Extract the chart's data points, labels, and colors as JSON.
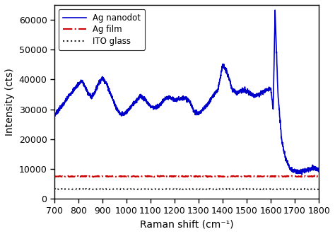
{
  "title": "",
  "xlabel": "Raman shift (cm⁻¹)",
  "ylabel": "Intensity (cts)",
  "xlim": [
    700,
    1800
  ],
  "ylim": [
    0,
    65000
  ],
  "yticks": [
    0,
    10000,
    20000,
    30000,
    40000,
    50000,
    60000
  ],
  "ytick_labels": [
    "0",
    "10000",
    "20000",
    "30000",
    "40000",
    "50000",
    "60000"
  ],
  "xticks": [
    700,
    800,
    900,
    1000,
    1100,
    1200,
    1300,
    1400,
    1500,
    1600,
    1700,
    1800
  ],
  "legend": [
    {
      "label": "Ag nanodot",
      "color": "#0000cc",
      "linestyle": "-",
      "lw": 1.2
    },
    {
      "label": "Ag film",
      "color": "#cc0000",
      "linestyle": "-.",
      "lw": 1.5
    },
    {
      "label": "ITO glass",
      "color": "#222222",
      "linestyle": ":",
      "lw": 1.5
    }
  ],
  "ag_nanodot_x": [
    700,
    715,
    730,
    745,
    760,
    775,
    790,
    800,
    815,
    825,
    840,
    855,
    870,
    885,
    900,
    915,
    930,
    945,
    960,
    975,
    990,
    1005,
    1020,
    1040,
    1060,
    1080,
    1100,
    1120,
    1140,
    1160,
    1180,
    1200,
    1220,
    1240,
    1260,
    1280,
    1300,
    1320,
    1340,
    1360,
    1380,
    1400,
    1420,
    1440,
    1460,
    1480,
    1500,
    1520,
    1540,
    1560,
    1580,
    1600,
    1610,
    1618,
    1630,
    1645,
    1660,
    1680,
    1700,
    1720,
    1750,
    1780,
    1800
  ],
  "ag_nanodot_y": [
    28000,
    29500,
    31000,
    32500,
    34500,
    36000,
    37500,
    38500,
    39500,
    38000,
    35500,
    34000,
    36000,
    39000,
    40500,
    39000,
    36000,
    33000,
    30000,
    28500,
    28200,
    29500,
    31000,
    33000,
    34500,
    33000,
    31000,
    30500,
    31500,
    33500,
    34000,
    33000,
    33500,
    34000,
    33000,
    29500,
    28500,
    30000,
    32000,
    34500,
    36500,
    45000,
    42000,
    36500,
    35500,
    36500,
    36000,
    35000,
    34500,
    35500,
    36500,
    37000,
    30000,
    63000,
    35000,
    20000,
    14000,
    10000,
    9200,
    9000,
    9500,
    10500,
    9500
  ],
  "ag_film_y": 7500,
  "ito_glass_y": 3200
}
